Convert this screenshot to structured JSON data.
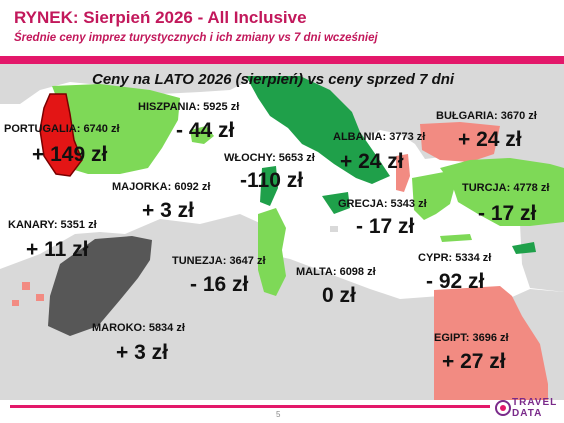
{
  "header": {
    "title": "RYNEK: Sierpień 2026 - All Inclusive",
    "subtitle": "Średnie ceny imprez turystycznych i ich zmiany vs 7 dni wcześniej"
  },
  "map": {
    "heading": "Ceny na LATO 2026 (sierpień) vs ceny sprzed 7 dni",
    "colors": {
      "increase_large": "#e31515",
      "increase": "#f28b82",
      "decrease": "#7ed957",
      "decrease_large": "#1fa04a",
      "small_change": "#575757",
      "land": "#d9d9d9"
    },
    "destinations": {
      "portugalia": {
        "label": "PORTUGALIA: 6740 zł",
        "change": "+ 149 zł"
      },
      "hiszpania": {
        "label": "HISZPANIA: 5925 zł",
        "change": "- 44 zł"
      },
      "majorka": {
        "label": "MAJORKA: 6092 zł",
        "change": "+ 3 zł"
      },
      "kanary": {
        "label": "KANARY: 5351 zł",
        "change": "+ 11 zł"
      },
      "maroko": {
        "label": "MAROKO: 5834 zł",
        "change": "+ 3 zł"
      },
      "wlochy": {
        "label": "WŁOCHY: 5653 zł",
        "change": "-110 zł"
      },
      "albania": {
        "label": "ALBANIA: 3773 zł",
        "change": "+ 24 zł"
      },
      "bulgaria": {
        "label": "BUŁGARIA: 3670 zł",
        "change": "+ 24 zł"
      },
      "turcja": {
        "label": "TURCJA: 4778 zł",
        "change": "- 17 zł"
      },
      "grecja": {
        "label": "GRECJA: 5343 zł",
        "change": "- 17 zł"
      },
      "tunezja": {
        "label": "TUNEZJA: 3647 zł",
        "change": "- 16 zł"
      },
      "malta": {
        "label": "MALTA: 6098 zł",
        "change": "0 zł"
      },
      "cypr": {
        "label": "CYPR: 5334 zł",
        "change": "- 92 zł"
      },
      "egipt": {
        "label": "EGIPT: 3696 zł",
        "change": "+ 27 zł"
      }
    }
  },
  "footer": {
    "page_number": "5",
    "logo_line1": "TRAVEL",
    "logo_line2": "DATA"
  }
}
